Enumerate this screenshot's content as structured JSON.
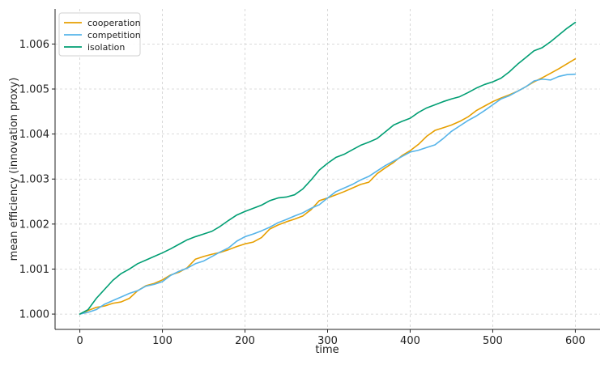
{
  "chart_data": {
    "type": "line",
    "xlabel": "time",
    "ylabel": "mean efficiency (innovation proxy)",
    "xlim": [
      -30,
      630
    ],
    "ylim": [
      0.99966,
      1.00678
    ],
    "xticks": [
      0,
      100,
      200,
      300,
      400,
      500,
      600
    ],
    "xtick_labels": [
      "0",
      "100",
      "200",
      "300",
      "400",
      "500",
      "600"
    ],
    "yticks": [
      1.0,
      1.001,
      1.002,
      1.003,
      1.004,
      1.005,
      1.006
    ],
    "ytick_labels": [
      "1.000",
      "1.001",
      "1.002",
      "1.003",
      "1.004",
      "1.005",
      "1.006"
    ],
    "grid": true,
    "legend_position": "top-left",
    "series": [
      {
        "name": "cooperation",
        "color": "#E69F00",
        "x": [
          0,
          10,
          20,
          30,
          40,
          50,
          60,
          70,
          80,
          90,
          100,
          110,
          120,
          130,
          140,
          150,
          160,
          170,
          180,
          190,
          200,
          210,
          220,
          230,
          240,
          250,
          260,
          270,
          280,
          290,
          300,
          310,
          320,
          330,
          340,
          350,
          360,
          370,
          380,
          390,
          400,
          410,
          420,
          430,
          440,
          450,
          460,
          470,
          480,
          490,
          500,
          510,
          520,
          530,
          540,
          550,
          560,
          570,
          580,
          590,
          600
        ],
        "y": [
          1.0,
          1.00008,
          1.00015,
          1.00018,
          1.00024,
          1.00027,
          1.00035,
          1.00052,
          1.00063,
          1.00068,
          1.00076,
          1.00087,
          1.00093,
          1.00103,
          1.00122,
          1.00128,
          1.00133,
          1.00137,
          1.00143,
          1.0015,
          1.00156,
          1.0016,
          1.0017,
          1.00189,
          1.00198,
          1.00205,
          1.00211,
          1.00218,
          1.00232,
          1.00252,
          1.00258,
          1.00265,
          1.00272,
          1.0028,
          1.00288,
          1.00293,
          1.00312,
          1.00325,
          1.00337,
          1.00352,
          1.00363,
          1.00377,
          1.00395,
          1.00408,
          1.00414,
          1.0042,
          1.00428,
          1.00438,
          1.00452,
          1.00462,
          1.00472,
          1.0048,
          1.00487,
          1.00495,
          1.00505,
          1.00516,
          1.00525,
          1.00535,
          1.00545,
          1.00556,
          1.00567
        ]
      },
      {
        "name": "competition",
        "color": "#56B4E9",
        "x": [
          0,
          10,
          20,
          30,
          40,
          50,
          60,
          70,
          80,
          90,
          100,
          110,
          120,
          130,
          140,
          150,
          160,
          170,
          180,
          190,
          200,
          210,
          220,
          230,
          240,
          250,
          260,
          270,
          280,
          290,
          300,
          310,
          320,
          330,
          340,
          350,
          360,
          370,
          380,
          390,
          400,
          410,
          420,
          430,
          440,
          450,
          460,
          470,
          480,
          490,
          500,
          510,
          520,
          530,
          540,
          550,
          560,
          570,
          580,
          590,
          600
        ],
        "y": [
          1.0,
          1.00004,
          1.0001,
          1.00022,
          1.0003,
          1.00038,
          1.00046,
          1.00052,
          1.00062,
          1.00066,
          1.00072,
          1.00086,
          1.00095,
          1.00102,
          1.00112,
          1.00118,
          1.00128,
          1.00138,
          1.00147,
          1.00162,
          1.00172,
          1.00178,
          1.00185,
          1.00193,
          1.00203,
          1.0021,
          1.00218,
          1.00225,
          1.00235,
          1.00243,
          1.00258,
          1.00272,
          1.0028,
          1.00288,
          1.00298,
          1.00306,
          1.00318,
          1.0033,
          1.0034,
          1.0035,
          1.0036,
          1.00364,
          1.0037,
          1.00376,
          1.0039,
          1.00406,
          1.00418,
          1.0043,
          1.0044,
          1.00452,
          1.00465,
          1.00478,
          1.00485,
          1.00495,
          1.00505,
          1.00518,
          1.00522,
          1.0052,
          1.00528,
          1.00532,
          1.00533
        ]
      },
      {
        "name": "isolation",
        "color": "#009E73",
        "x": [
          0,
          10,
          20,
          30,
          40,
          50,
          60,
          70,
          80,
          90,
          100,
          110,
          120,
          130,
          140,
          150,
          160,
          170,
          180,
          190,
          200,
          210,
          220,
          230,
          240,
          250,
          260,
          270,
          280,
          290,
          300,
          310,
          320,
          330,
          340,
          350,
          360,
          370,
          380,
          390,
          400,
          410,
          420,
          430,
          440,
          450,
          460,
          470,
          480,
          490,
          500,
          510,
          520,
          530,
          540,
          550,
          560,
          570,
          580,
          590,
          600
        ],
        "y": [
          1.0,
          1.0001,
          1.00035,
          1.00055,
          1.00075,
          1.0009,
          1.001,
          1.00112,
          1.0012,
          1.00128,
          1.00136,
          1.00145,
          1.00155,
          1.00165,
          1.00172,
          1.00178,
          1.00184,
          1.00195,
          1.00208,
          1.0022,
          1.00228,
          1.00235,
          1.00242,
          1.00252,
          1.00258,
          1.0026,
          1.00265,
          1.00278,
          1.00298,
          1.0032,
          1.00335,
          1.00348,
          1.00355,
          1.00365,
          1.00375,
          1.00382,
          1.0039,
          1.00405,
          1.0042,
          1.00428,
          1.00435,
          1.00448,
          1.00458,
          1.00465,
          1.00472,
          1.00478,
          1.00483,
          1.00492,
          1.00502,
          1.0051,
          1.00516,
          1.00524,
          1.00538,
          1.00555,
          1.0057,
          1.00585,
          1.00592,
          1.00605,
          1.0062,
          1.00635,
          1.00648
        ]
      }
    ]
  }
}
